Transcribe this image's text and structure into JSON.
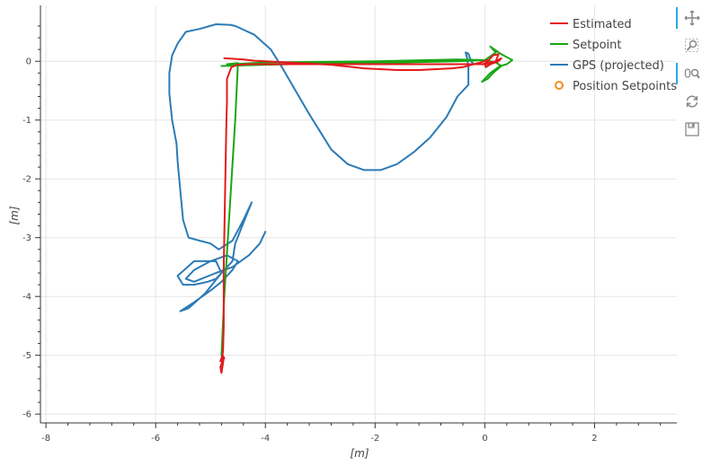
{
  "chart_data": {
    "type": "line",
    "xlabel": "[m]",
    "ylabel": "[m]",
    "xlim": [
      -8.1,
      3.5
    ],
    "ylim": [
      -6.15,
      0.95
    ],
    "xticks": [
      -8,
      -6,
      -4,
      -2,
      0,
      2
    ],
    "yticks": [
      -6,
      -5,
      -4,
      -3,
      -2,
      -1,
      0
    ],
    "x_tick_labels": [
      "-8",
      "-6",
      "-4",
      "-2",
      "0",
      "2"
    ],
    "y_tick_labels": [
      "-6",
      "-5",
      "-4",
      "-3",
      "-2",
      "-1",
      "0"
    ],
    "grid": true,
    "legend_position": "top-right",
    "series": [
      {
        "name": "Estimated",
        "color": "#e31a1c",
        "marker": "line",
        "x": [
          -4.75,
          -4.55,
          -4.4,
          -4.2,
          -4.0,
          -3.8,
          -3.6,
          -3.4,
          -3.2,
          -3.0,
          -2.8,
          -2.6,
          -2.4,
          -2.2,
          -2.0,
          -1.8,
          -1.6,
          -1.4,
          -1.2,
          -1.0,
          -0.8,
          -0.6,
          -0.4,
          -0.2,
          0.0,
          0.05,
          0.0,
          0.02,
          0.1,
          0.2,
          0.25,
          0.15,
          0.05,
          0.0,
          -0.05,
          0.2,
          0.3,
          0.25,
          0.1,
          0.0,
          -0.1,
          -0.3,
          -0.5,
          -0.7,
          -1.0,
          -1.5,
          -2.0,
          -2.5,
          -3.0,
          -3.5,
          -4.0,
          -4.3,
          -4.5,
          -4.62,
          -4.7,
          -4.7,
          -4.71,
          -4.72,
          -4.73,
          -4.74,
          -4.75,
          -4.76,
          -4.76,
          -4.76,
          -4.77,
          -4.78,
          -4.78,
          -4.8,
          -4.82,
          -4.8,
          -4.76,
          -4.82,
          -4.78,
          -4.75,
          -4.8,
          -4.8
        ],
        "y": [
          0.05,
          0.04,
          0.03,
          0.01,
          0.0,
          -0.01,
          -0.02,
          -0.03,
          -0.04,
          -0.05,
          -0.06,
          -0.08,
          -0.1,
          -0.12,
          -0.13,
          -0.14,
          -0.15,
          -0.15,
          -0.15,
          -0.14,
          -0.13,
          -0.12,
          -0.1,
          -0.05,
          0.0,
          0.02,
          -0.05,
          -0.1,
          -0.05,
          0.0,
          0.12,
          0.1,
          0.0,
          -0.05,
          -0.05,
          0.0,
          0.05,
          0.0,
          -0.05,
          -0.05,
          -0.05,
          -0.05,
          -0.05,
          -0.05,
          -0.05,
          -0.05,
          -0.05,
          -0.05,
          -0.05,
          -0.05,
          -0.05,
          -0.05,
          -0.06,
          -0.1,
          -0.3,
          -0.7,
          -1.0,
          -1.5,
          -2.0,
          -2.5,
          -3.0,
          -3.5,
          -4.0,
          -4.5,
          -4.9,
          -5.0,
          -5.1,
          -5.15,
          -5.2,
          -5.3,
          -5.05,
          -5.1,
          -5.0,
          -5.05,
          -5.1,
          -5.08
        ]
      },
      {
        "name": "Setpoint",
        "color": "#1aa614",
        "marker": "line",
        "x": [
          -4.8,
          -4.0,
          -3.0,
          -2.0,
          -1.0,
          -0.5,
          0.0,
          0.2,
          0.1,
          0.3,
          0.5,
          0.4,
          0.28,
          0.1,
          -0.05,
          0.05,
          0.15,
          0.3,
          0.2,
          0.1,
          0.0,
          -0.05,
          -0.5,
          -1.0,
          -2.0,
          -3.0,
          -4.0,
          -4.6,
          -4.5,
          -4.7,
          -4.5,
          -4.55,
          -4.65,
          -4.75,
          -4.8,
          -4.78
        ],
        "y": [
          -0.08,
          -0.06,
          -0.04,
          -0.03,
          -0.01,
          0.0,
          0.02,
          0.15,
          0.25,
          0.12,
          0.02,
          -0.05,
          -0.08,
          -0.2,
          -0.35,
          -0.3,
          -0.2,
          -0.08,
          -0.02,
          0.0,
          0.01,
          0.02,
          0.03,
          0.02,
          0.0,
          -0.01,
          -0.02,
          -0.05,
          -0.05,
          -0.05,
          -0.03,
          -1.0,
          -2.5,
          -4.0,
          -5.0,
          -5.05
        ]
      },
      {
        "name": "GPS (projected)",
        "color": "#2c7bb6",
        "marker": "line",
        "x": [
          -4.0,
          -4.1,
          -4.3,
          -4.6,
          -4.9,
          -5.3,
          -5.45,
          -5.3,
          -5.0,
          -4.7,
          -4.5,
          -4.6,
          -4.8,
          -5.0,
          -5.3,
          -5.55,
          -5.4,
          -5.1,
          -4.8,
          -4.9,
          -5.3,
          -5.6,
          -5.5,
          -5.3,
          -5.05,
          -4.9,
          -4.6,
          -4.55,
          -4.4,
          -4.25,
          -4.4,
          -4.6,
          -4.85,
          -5.0,
          -5.2,
          -5.4,
          -5.5,
          -5.55,
          -5.6,
          -5.62,
          -5.7,
          -5.75,
          -5.75,
          -5.7,
          -5.6,
          -5.45,
          -5.2,
          -4.9,
          -4.65,
          -4.55,
          -4.2,
          -3.9,
          -3.7,
          -3.45,
          -3.2,
          -3.0,
          -2.8,
          -2.5,
          -2.2,
          -1.9,
          -1.6,
          -1.3,
          -1.0,
          -0.7,
          -0.5,
          -0.3,
          -0.3,
          -0.32,
          -0.35,
          -0.3,
          -0.25,
          -0.2
        ],
        "y": [
          -2.9,
          -3.1,
          -3.3,
          -3.5,
          -3.6,
          -3.75,
          -3.7,
          -3.55,
          -3.4,
          -3.3,
          -3.4,
          -3.55,
          -3.75,
          -3.9,
          -4.1,
          -4.25,
          -4.2,
          -3.95,
          -3.6,
          -3.4,
          -3.4,
          -3.65,
          -3.8,
          -3.8,
          -3.75,
          -3.7,
          -3.4,
          -3.1,
          -2.75,
          -2.4,
          -2.7,
          -3.05,
          -3.2,
          -3.1,
          -3.05,
          -3.0,
          -2.7,
          -2.2,
          -1.7,
          -1.4,
          -1.0,
          -0.55,
          -0.2,
          0.1,
          0.3,
          0.5,
          0.55,
          0.63,
          0.62,
          0.6,
          0.45,
          0.2,
          -0.1,
          -0.5,
          -0.9,
          -1.2,
          -1.5,
          -1.75,
          -1.85,
          -1.85,
          -1.75,
          -1.55,
          -1.3,
          -0.95,
          -0.6,
          -0.4,
          -0.1,
          0.05,
          0.15,
          0.13,
          0.0,
          -0.05
        ]
      },
      {
        "name": "Position Setpoints",
        "color": "#f28e1c",
        "marker": "circle",
        "x": [],
        "y": []
      }
    ]
  },
  "toolbar": {
    "tools": [
      {
        "name": "pan-tool-button",
        "icon": "pan-icon",
        "active": true
      },
      {
        "name": "box-zoom-tool-button",
        "icon": "box-zoom-icon",
        "active": false
      },
      {
        "name": "wheel-zoom-tool-button",
        "icon": "wheel-zoom-icon",
        "active": true
      },
      {
        "name": "reset-tool-button",
        "icon": "reset-icon",
        "active": false
      },
      {
        "name": "save-tool-button",
        "icon": "save-icon",
        "active": false
      }
    ]
  }
}
